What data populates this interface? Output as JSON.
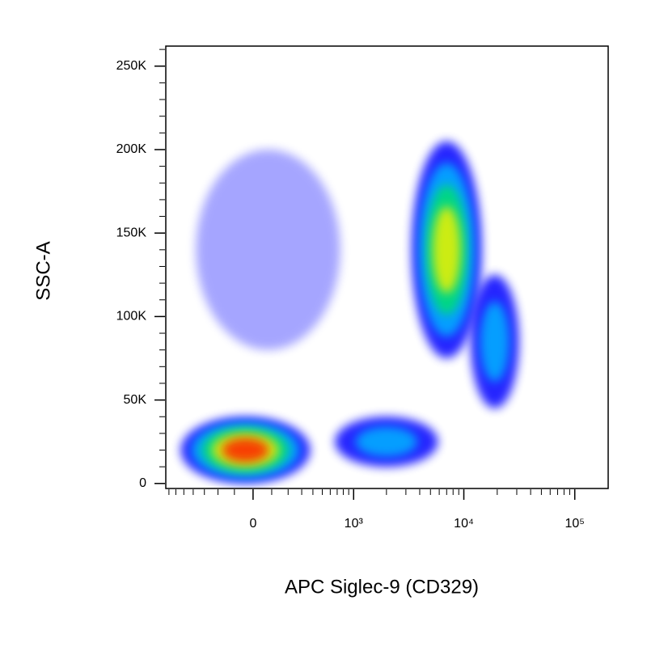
{
  "chart_data": {
    "type": "density",
    "x_label": "APC Siglec-9 (CD329)",
    "y_label": "SSC-A",
    "x_scale": "biexponential",
    "xlim": [
      -750,
      200000
    ],
    "xticks": [
      0,
      {
        "value": 1000,
        "label": "10³"
      },
      {
        "value": 10000,
        "label": "10⁴"
      },
      {
        "value": 100000,
        "label": "10⁵"
      }
    ],
    "ylim": [
      -3000,
      262000
    ],
    "yticks": [
      0,
      {
        "value": 50000,
        "label": "50K"
      },
      {
        "value": 100000,
        "label": "100K"
      },
      {
        "value": 150000,
        "label": "150K"
      },
      {
        "value": 200000,
        "label": "200K"
      },
      {
        "value": 250000,
        "label": "250K"
      }
    ],
    "density_colors": [
      "#0000ff",
      "#00b4ff",
      "#00e070",
      "#f0f000",
      "#ff2000"
    ],
    "populations": [
      {
        "x": 80,
        "y": 140000,
        "x_range": [
          -300,
          900
        ],
        "y_range": [
          80000,
          200000
        ],
        "levels": 1
      },
      {
        "x": 2000,
        "y": 25000,
        "x_range": [
          500,
          4500
        ],
        "y_range": [
          10000,
          40000
        ],
        "levels": 2
      },
      {
        "x": 19000,
        "y": 85000,
        "x_range": [
          11000,
          30000
        ],
        "y_range": [
          50000,
          130000
        ],
        "levels": 2
      },
      {
        "x": 7000,
        "y": 140000,
        "x_range": [
          2800,
          12000
        ],
        "y_range": [
          80000,
          210000
        ],
        "levels": 4
      },
      {
        "x": -40,
        "y": 20000,
        "x_range": [
          -450,
          450
        ],
        "y_range": [
          5000,
          45000
        ],
        "levels": 5
      }
    ]
  }
}
